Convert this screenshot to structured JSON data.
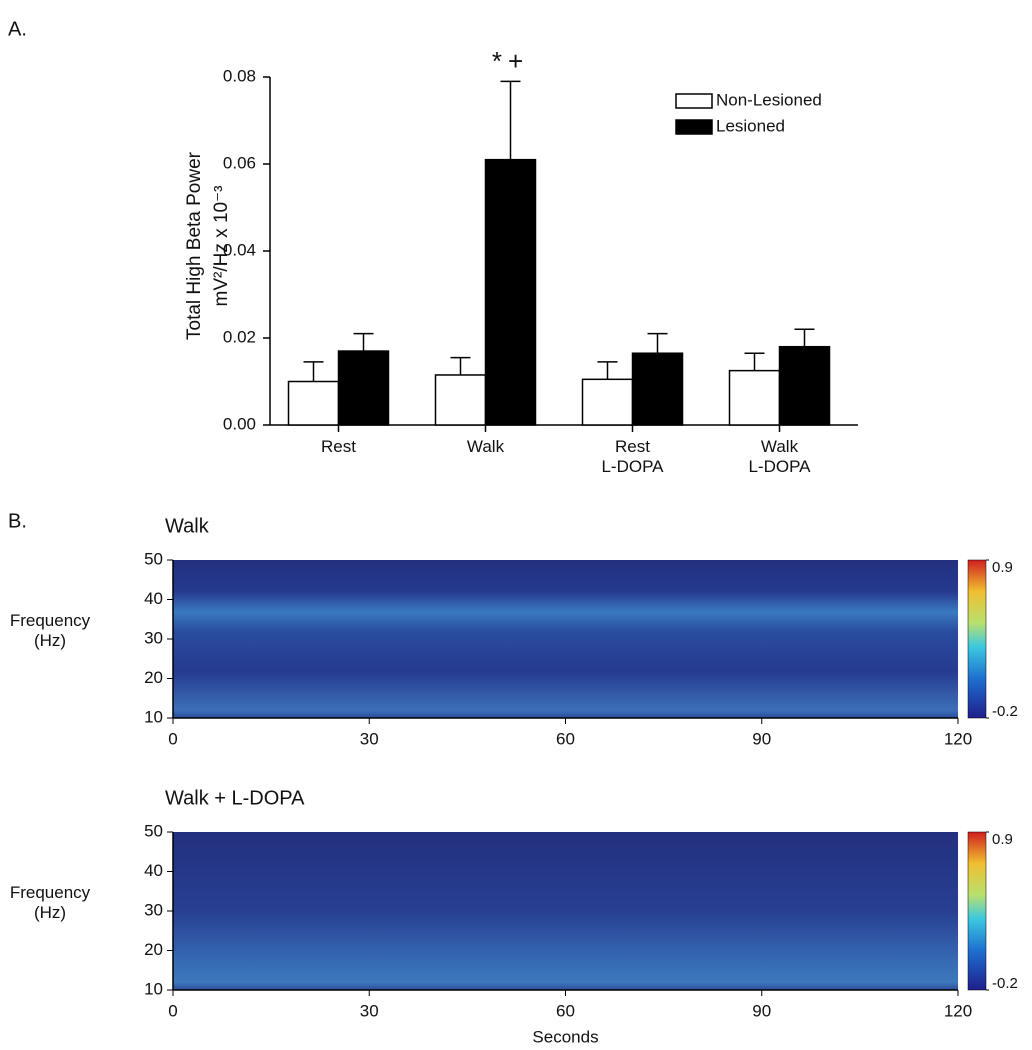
{
  "chart_data": [
    {
      "type": "bar",
      "panel": "A.",
      "y_label": "Total High Beta Power",
      "y_label_2": "mV²/Hz x 10⁻³",
      "categories": [
        "Rest",
        "Walk",
        "Rest\nL-DOPA",
        "Walk\nL-DOPA"
      ],
      "series": [
        {
          "name": "Non-Lesioned",
          "color": "#ffffff",
          "values": [
            0.01,
            0.0115,
            0.0105,
            0.0125
          ],
          "errors": [
            0.0045,
            0.004,
            0.004,
            0.004
          ]
        },
        {
          "name": "Lesioned",
          "color": "#000000",
          "values": [
            0.017,
            0.061,
            0.0165,
            0.018
          ],
          "errors": [
            0.004,
            0.018,
            0.0045,
            0.004
          ]
        }
      ],
      "annotation": "*+",
      "ylim": [
        0,
        0.08
      ],
      "yticks": [
        {
          "value": 0,
          "label": "0.00"
        },
        0.02,
        0.04,
        0.06,
        0.08
      ],
      "legend": "upper right"
    },
    {
      "type": "heatmap",
      "panel": "B.",
      "title": "Walk",
      "y_label": "Frequency\n(Hz)",
      "xlim": [
        0,
        120
      ],
      "xticks": [
        0,
        30,
        60,
        90,
        120
      ],
      "ylim": [
        10,
        50
      ],
      "yticks": [
        10,
        20,
        30,
        40,
        50
      ],
      "clim": [
        -0.2,
        0.9
      ],
      "cticks": [
        -0.2,
        0.9
      ]
    },
    {
      "type": "heatmap",
      "title": "Walk + L-DOPA",
      "y_label": "Frequency\n(Hz)",
      "x_label": "Seconds",
      "xlim": [
        0,
        120
      ],
      "xticks": [
        0,
        30,
        60,
        90,
        120
      ],
      "ylim": [
        10,
        50
      ],
      "yticks": [
        10,
        20,
        30,
        40,
        50
      ],
      "clim": [
        -0.2,
        0.9
      ],
      "cticks": [
        -0.2,
        0.9
      ]
    }
  ]
}
